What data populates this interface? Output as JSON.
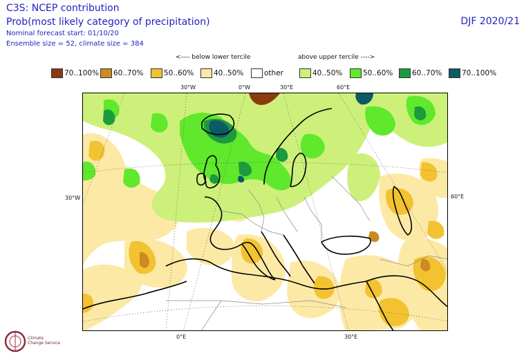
{
  "header": {
    "title": "C3S: NCEP contribution",
    "subtitle": "Prob(most likely category of precipitation)",
    "forecast_start": "Nominal forecast start: 01/10/20",
    "ensemble": "Ensemble size = 52, climate size = 384",
    "season": "DJF 2020/21"
  },
  "legend": {
    "below_label": "<---- below lower tercile",
    "above_label": "above upper tercile ---->",
    "items": [
      {
        "label": "70..100%",
        "color": "#8b3a0f"
      },
      {
        "label": "60..70%",
        "color": "#cc8a22"
      },
      {
        "label": "50..60%",
        "color": "#f2c230"
      },
      {
        "label": "40..50%",
        "color": "#fde9a6"
      },
      {
        "label": "other",
        "color": "#ffffff"
      },
      {
        "label": "40..50%",
        "color": "#cdf07a"
      },
      {
        "label": "50..60%",
        "color": "#5fe82c"
      },
      {
        "label": "60..70%",
        "color": "#1c9a3e"
      },
      {
        "label": "70..100%",
        "color": "#0b5a66"
      }
    ]
  },
  "axes": {
    "top": [
      "30°W",
      "0°W",
      "30°E",
      "60°E"
    ],
    "left": [
      "30°W"
    ],
    "right": [
      "60°E"
    ],
    "bottom": [
      "0°E",
      "30°E"
    ]
  },
  "logo": {
    "line1": "Climate",
    "line2": "Change Service",
    "icon": "copernicus-c3s-logo-icon"
  }
}
